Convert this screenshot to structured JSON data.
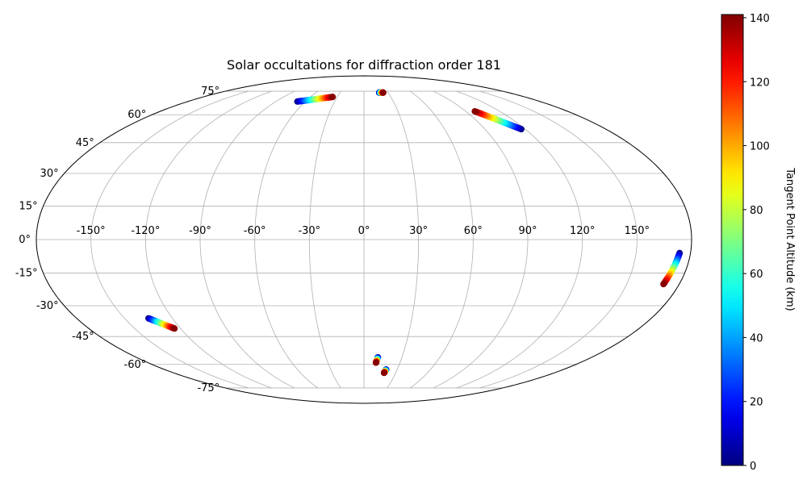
{
  "chart_data": {
    "type": "scatter",
    "projection": "mollweide",
    "title": "Solar occultations for diffraction order 181",
    "lon_tick_labels": [
      {
        "lon": -150,
        "text": "-150°"
      },
      {
        "lon": -120,
        "text": "-120°"
      },
      {
        "lon": -90,
        "text": "-90°"
      },
      {
        "lon": -60,
        "text": "-60°"
      },
      {
        "lon": -30,
        "text": "-30°"
      },
      {
        "lon": 0,
        "text": "0°"
      },
      {
        "lon": 30,
        "text": "30°"
      },
      {
        "lon": 60,
        "text": "60°"
      },
      {
        "lon": 90,
        "text": "90°"
      },
      {
        "lon": 120,
        "text": "120°"
      },
      {
        "lon": 150,
        "text": "150°"
      }
    ],
    "lat_tick_labels": [
      {
        "lat": 75,
        "text": "75°"
      },
      {
        "lat": 60,
        "text": "60°"
      },
      {
        "lat": 45,
        "text": "45°"
      },
      {
        "lat": 30,
        "text": "30°"
      },
      {
        "lat": 15,
        "text": "15°"
      },
      {
        "lat": 0,
        "text": "0°"
      },
      {
        "lat": -15,
        "text": "-15°"
      },
      {
        "lat": -30,
        "text": "-30°"
      },
      {
        "lat": -45,
        "text": "-45°"
      },
      {
        "lat": -60,
        "text": "-60°"
      },
      {
        "lat": -75,
        "text": "-75°"
      }
    ],
    "grid": true,
    "colorbar": {
      "label": "Tangent Point Altitude (km)",
      "colormap": "jet",
      "range": [
        0,
        141
      ],
      "ticks": [
        {
          "value": 0,
          "text": "0"
        },
        {
          "value": 20,
          "text": "20"
        },
        {
          "value": 40,
          "text": "40"
        },
        {
          "value": 60,
          "text": "60"
        },
        {
          "value": 80,
          "text": "80"
        },
        {
          "value": 100,
          "text": "100"
        },
        {
          "value": 120,
          "text": "120"
        },
        {
          "value": 140,
          "text": "140"
        }
      ]
    },
    "tracks": [
      {
        "start": {
          "lon": -68,
          "lat": 68,
          "alt": 0
        },
        "end": {
          "lon": -35,
          "lat": 71,
          "alt": 140
        }
      },
      {
        "start": {
          "lon": 19,
          "lat": 74,
          "alt": 0
        },
        "end": {
          "lon": 24,
          "lat": 74,
          "alt": 140
        }
      },
      {
        "start": {
          "lon": 117,
          "lat": 52,
          "alt": 0
        },
        "end": {
          "lon": 98,
          "lat": 62,
          "alt": 140
        }
      },
      {
        "start": {
          "lon": 174,
          "lat": -6,
          "alt": 0
        },
        "end": {
          "lon": 171,
          "lat": -20,
          "alt": 140
        }
      },
      {
        "start": {
          "lon": -135,
          "lat": -36,
          "alt": 0
        },
        "end": {
          "lon": -124,
          "lat": -41,
          "alt": 140
        }
      },
      {
        "start": {
          "lon": 11,
          "lat": -56,
          "alt": 0
        },
        "end": {
          "lon": 10,
          "lat": -59,
          "alt": 140
        }
      },
      {
        "start": {
          "lon": 20,
          "lat": -63,
          "alt": 0
        },
        "end": {
          "lon": 19,
          "lat": -65,
          "alt": 140
        }
      }
    ]
  }
}
